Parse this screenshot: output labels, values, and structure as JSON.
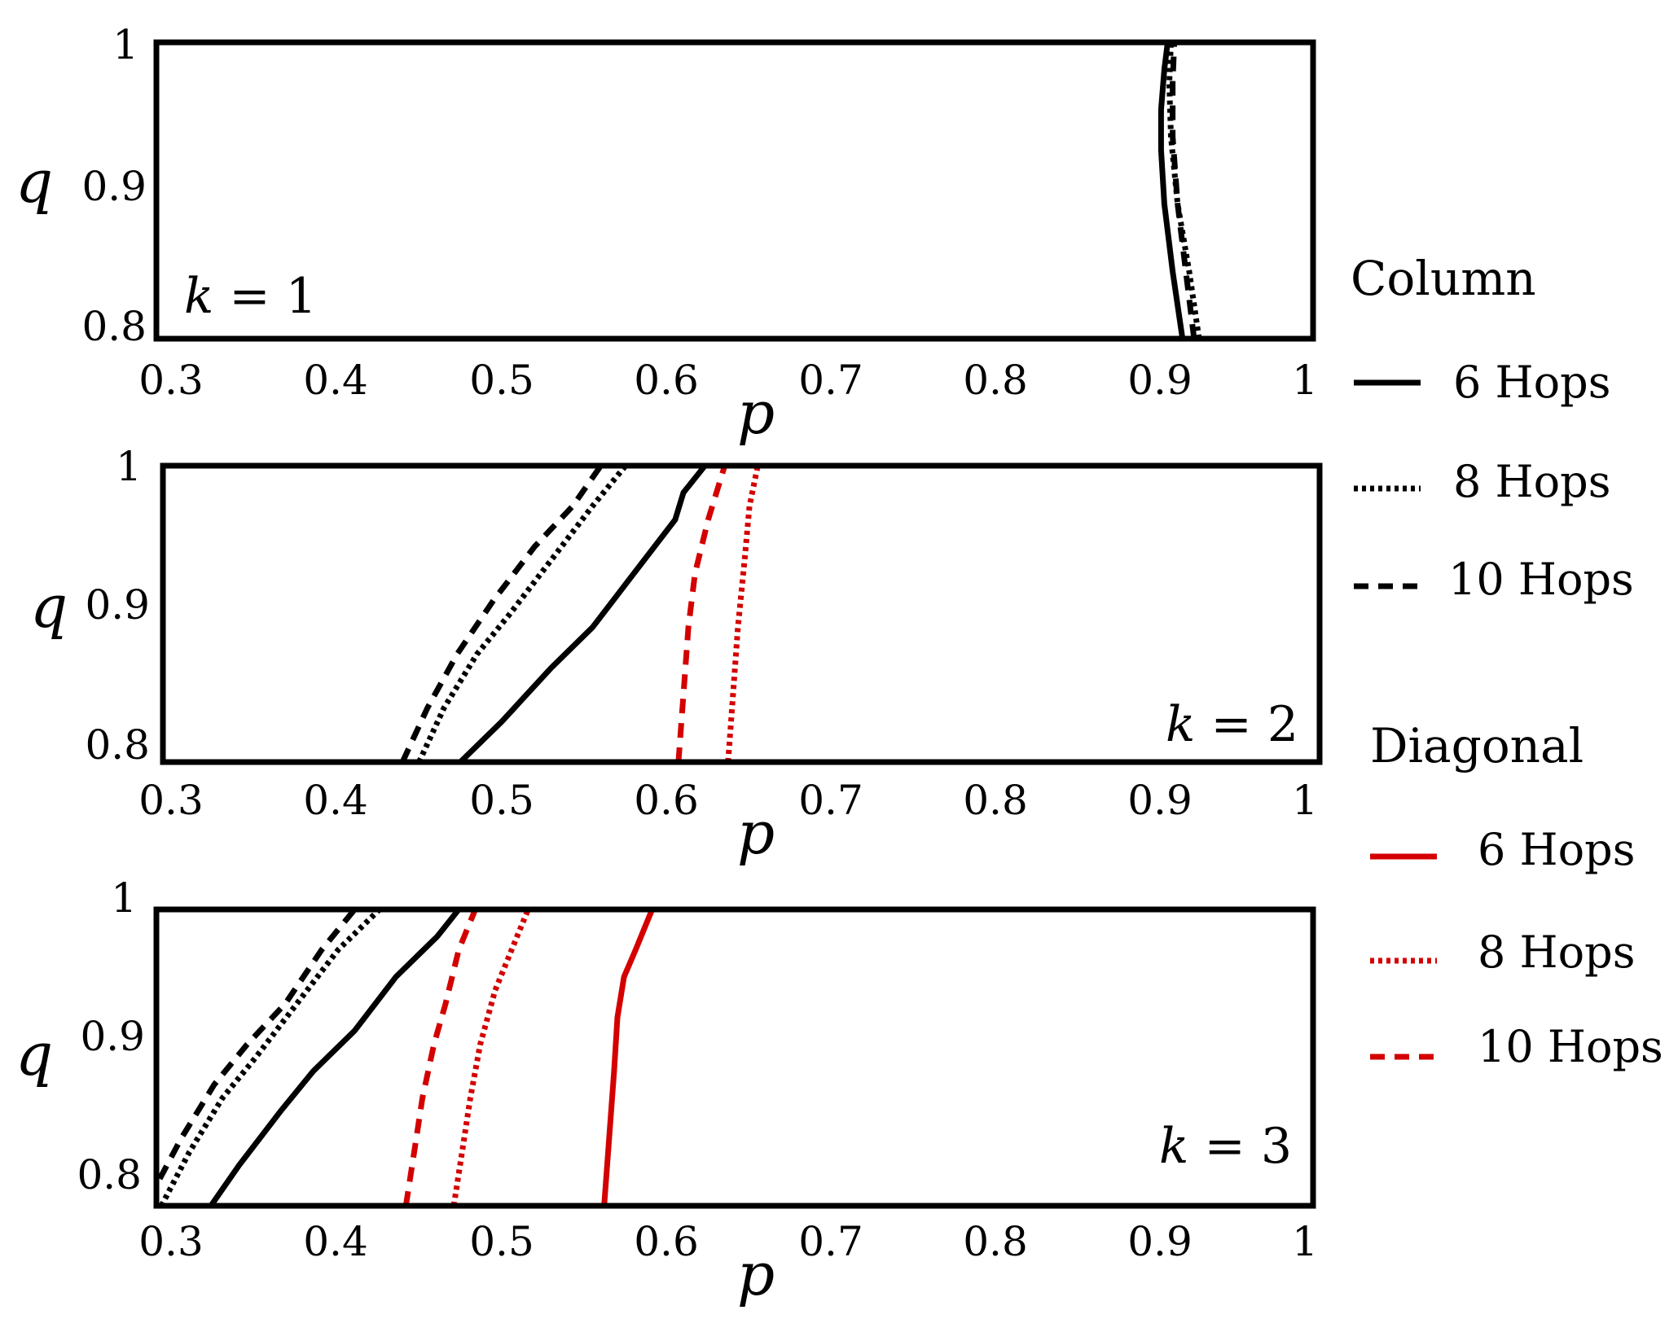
{
  "chart_data": [
    {
      "type": "line",
      "panel": "k = 1",
      "panel_label": {
        "var": "k",
        "eq": " = ",
        "val": "1"
      },
      "label_position": "bottom-left",
      "xlabel": "p",
      "ylabel": "q",
      "xlim": [
        0.3,
        1.0
      ],
      "ylim": [
        0.78,
        1.0
      ],
      "xticks": [
        "0.3",
        "0.4",
        "0.5",
        "0.6",
        "0.7",
        "0.8",
        "0.9",
        "1"
      ],
      "yticks": [
        "0.8",
        "0.9",
        "1"
      ],
      "series": [
        {
          "name": "Column 6 Hops",
          "color": "#000000",
          "dash": "solid",
          "points": [
            [
              0.921,
              0.78
            ],
            [
              0.915,
              0.83
            ],
            [
              0.91,
              0.88
            ],
            [
              0.908,
              0.92
            ],
            [
              0.908,
              0.95
            ],
            [
              0.91,
              0.98
            ],
            [
              0.912,
              1.0
            ]
          ]
        },
        {
          "name": "Column 8 Hops",
          "color": "#000000",
          "dash": "dotted",
          "points": [
            [
              0.931,
              0.78
            ],
            [
              0.925,
              0.83
            ],
            [
              0.918,
              0.88
            ],
            [
              0.914,
              0.93
            ],
            [
              0.913,
              0.97
            ],
            [
              0.914,
              1.0
            ]
          ]
        },
        {
          "name": "Column 10 Hops",
          "color": "#000000",
          "dash": "dashed",
          "points": [
            [
              0.928,
              0.78
            ],
            [
              0.923,
              0.83
            ],
            [
              0.918,
              0.88
            ],
            [
              0.915,
              0.93
            ],
            [
              0.915,
              0.97
            ],
            [
              0.916,
              1.0
            ]
          ]
        }
      ]
    },
    {
      "type": "line",
      "panel": "k = 2",
      "panel_label": {
        "var": "k",
        "eq": " = ",
        "val": "2"
      },
      "label_position": "bottom-right",
      "xlabel": "p",
      "ylabel": "q",
      "xlim": [
        0.3,
        1.0
      ],
      "ylim": [
        0.78,
        1.0
      ],
      "xticks": [
        "0.3",
        "0.4",
        "0.5",
        "0.6",
        "0.7",
        "0.8",
        "0.9",
        "1"
      ],
      "yticks": [
        "0.8",
        "0.9",
        "1"
      ],
      "series": [
        {
          "name": "Column 6 Hops",
          "color": "#000000",
          "dash": "solid",
          "points": [
            [
              0.48,
              0.78
            ],
            [
              0.505,
              0.81
            ],
            [
              0.535,
              0.85
            ],
            [
              0.56,
              0.88
            ],
            [
              0.585,
              0.92
            ],
            [
              0.61,
              0.96
            ],
            [
              0.615,
              0.98
            ],
            [
              0.628,
              1.0
            ]
          ]
        },
        {
          "name": "Column 8 Hops",
          "color": "#000000",
          "dash": "dotted",
          "points": [
            [
              0.455,
              0.78
            ],
            [
              0.47,
              0.82
            ],
            [
              0.49,
              0.86
            ],
            [
              0.51,
              0.89
            ],
            [
              0.535,
              0.93
            ],
            [
              0.56,
              0.97
            ],
            [
              0.58,
              1.0
            ]
          ]
        },
        {
          "name": "Column 10 Hops",
          "color": "#000000",
          "dash": "dashed",
          "points": [
            [
              0.445,
              0.78
            ],
            [
              0.46,
              0.82
            ],
            [
              0.478,
              0.86
            ],
            [
              0.5,
              0.9
            ],
            [
              0.525,
              0.94
            ],
            [
              0.548,
              0.97
            ],
            [
              0.565,
              1.0
            ]
          ]
        },
        {
          "name": "Diagonal 8 Hops",
          "color": "#d40000",
          "dash": "dotted",
          "points": [
            [
              0.642,
              0.78
            ],
            [
              0.645,
              0.83
            ],
            [
              0.648,
              0.88
            ],
            [
              0.652,
              0.93
            ],
            [
              0.655,
              0.97
            ],
            [
              0.66,
              1.0
            ]
          ]
        },
        {
          "name": "Diagonal 10 Hops",
          "color": "#d40000",
          "dash": "dashed",
          "points": [
            [
              0.612,
              0.78
            ],
            [
              0.615,
              0.83
            ],
            [
              0.618,
              0.88
            ],
            [
              0.622,
              0.92
            ],
            [
              0.63,
              0.96
            ],
            [
              0.64,
              1.0
            ]
          ]
        }
      ]
    },
    {
      "type": "line",
      "panel": "k = 3",
      "panel_label": {
        "var": "k",
        "eq": " = ",
        "val": "3"
      },
      "label_position": "bottom-right",
      "xlabel": "p",
      "ylabel": "q",
      "xlim": [
        0.3,
        1.0
      ],
      "ylim": [
        0.78,
        1.0
      ],
      "xticks": [
        "0.3",
        "0.4",
        "0.5",
        "0.6",
        "0.7",
        "0.8",
        "0.9",
        "1"
      ],
      "yticks": [
        "0.8",
        "0.9",
        "1"
      ],
      "series": [
        {
          "name": "Column 6 Hops",
          "color": "#000000",
          "dash": "solid",
          "points": [
            [
              0.333,
              0.78
            ],
            [
              0.35,
              0.81
            ],
            [
              0.375,
              0.85
            ],
            [
              0.395,
              0.88
            ],
            [
              0.42,
              0.91
            ],
            [
              0.445,
              0.95
            ],
            [
              0.47,
              0.98
            ],
            [
              0.483,
              1.0
            ]
          ]
        },
        {
          "name": "Column 8 Hops",
          "color": "#000000",
          "dash": "dotted",
          "points": [
            [
              0.303,
              0.78
            ],
            [
              0.32,
              0.82
            ],
            [
              0.34,
              0.86
            ],
            [
              0.36,
              0.89
            ],
            [
              0.385,
              0.93
            ],
            [
              0.41,
              0.97
            ],
            [
              0.435,
              1.0
            ]
          ]
        },
        {
          "name": "Column 10 Hops",
          "color": "#000000",
          "dash": "dashed",
          "points": [
            [
              0.302,
              0.8
            ],
            [
              0.315,
              0.83
            ],
            [
              0.335,
              0.87
            ],
            [
              0.355,
              0.9
            ],
            [
              0.378,
              0.93
            ],
            [
              0.4,
              0.97
            ],
            [
              0.42,
              1.0
            ]
          ]
        },
        {
          "name": "Diagonal 6 Hops",
          "color": "#d40000",
          "dash": "solid",
          "points": [
            [
              0.571,
              0.78
            ],
            [
              0.574,
              0.83
            ],
            [
              0.577,
              0.88
            ],
            [
              0.579,
              0.92
            ],
            [
              0.583,
              0.95
            ],
            [
              0.59,
              0.97
            ],
            [
              0.6,
              1.0
            ]
          ]
        },
        {
          "name": "Diagonal 8 Hops",
          "color": "#d40000",
          "dash": "dotted",
          "points": [
            [
              0.48,
              0.78
            ],
            [
              0.485,
              0.82
            ],
            [
              0.49,
              0.86
            ],
            [
              0.496,
              0.9
            ],
            [
              0.505,
              0.94
            ],
            [
              0.515,
              0.97
            ],
            [
              0.525,
              1.0
            ]
          ]
        },
        {
          "name": "Diagonal 10 Hops",
          "color": "#d40000",
          "dash": "dashed",
          "points": [
            [
              0.451,
              0.78
            ],
            [
              0.456,
              0.82
            ],
            [
              0.461,
              0.86
            ],
            [
              0.468,
              0.9
            ],
            [
              0.475,
              0.93
            ],
            [
              0.483,
              0.97
            ],
            [
              0.493,
              1.0
            ]
          ]
        }
      ]
    }
  ],
  "legend": {
    "column": {
      "title": "Column",
      "color": "#000000",
      "entries": [
        {
          "label": "6 Hops",
          "dash": "solid"
        },
        {
          "label": "8 Hops",
          "dash": "dotted"
        },
        {
          "label": "10 Hops",
          "dash": "dashed"
        }
      ]
    },
    "diagonal": {
      "title": "Diagonal",
      "color": "#d40000",
      "entries": [
        {
          "label": "6 Hops",
          "dash": "solid"
        },
        {
          "label": "8 Hops",
          "dash": "dotted"
        },
        {
          "label": "10 Hops",
          "dash": "dashed"
        }
      ]
    }
  }
}
